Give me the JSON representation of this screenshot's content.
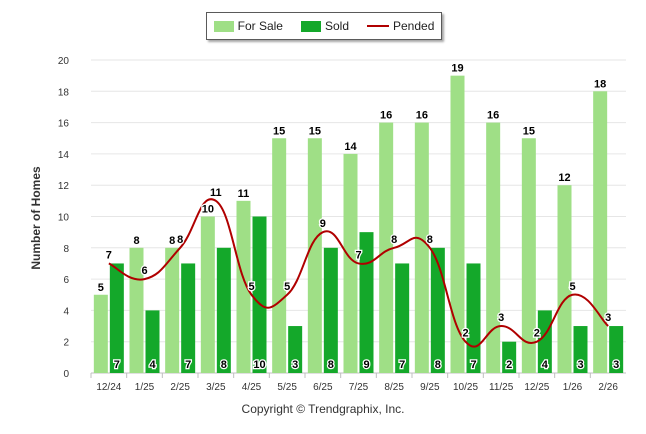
{
  "legend": {
    "for_sale": "For Sale",
    "sold": "Sold",
    "pended": "Pended"
  },
  "colors": {
    "for_sale": "#9fdf86",
    "sold": "#14a82a",
    "pended": "#b00000"
  },
  "copyright": "Copyright © Trendgraphix, Inc.",
  "chart_data": {
    "type": "bar",
    "title": "",
    "xlabel": "",
    "ylabel": "Number of Homes",
    "ylim": [
      0,
      20
    ],
    "yticks": [
      "0",
      "2",
      "4",
      "6",
      "8",
      "10",
      "12",
      "14",
      "16",
      "18",
      "20"
    ],
    "grid": true,
    "legend_position": "top-center",
    "categories": [
      "12/24",
      "1/25",
      "2/25",
      "3/25",
      "4/25",
      "5/25",
      "6/25",
      "7/25",
      "8/25",
      "9/25",
      "10/25",
      "11/25",
      "12/25",
      "1/26",
      "2/26"
    ],
    "series": [
      {
        "name": "For Sale",
        "type": "bar",
        "values": [
          5,
          8,
          8,
          10,
          11,
          15,
          15,
          14,
          16,
          16,
          19,
          16,
          15,
          12,
          18
        ]
      },
      {
        "name": "Sold",
        "type": "bar",
        "values": [
          7,
          4,
          7,
          8,
          10,
          3,
          8,
          9,
          7,
          8,
          7,
          2,
          4,
          3,
          3
        ]
      },
      {
        "name": "Pended",
        "type": "line",
        "values": [
          7,
          6,
          8,
          11,
          5,
          5,
          9,
          7,
          8,
          8,
          2,
          3,
          2,
          5,
          3
        ]
      }
    ]
  }
}
